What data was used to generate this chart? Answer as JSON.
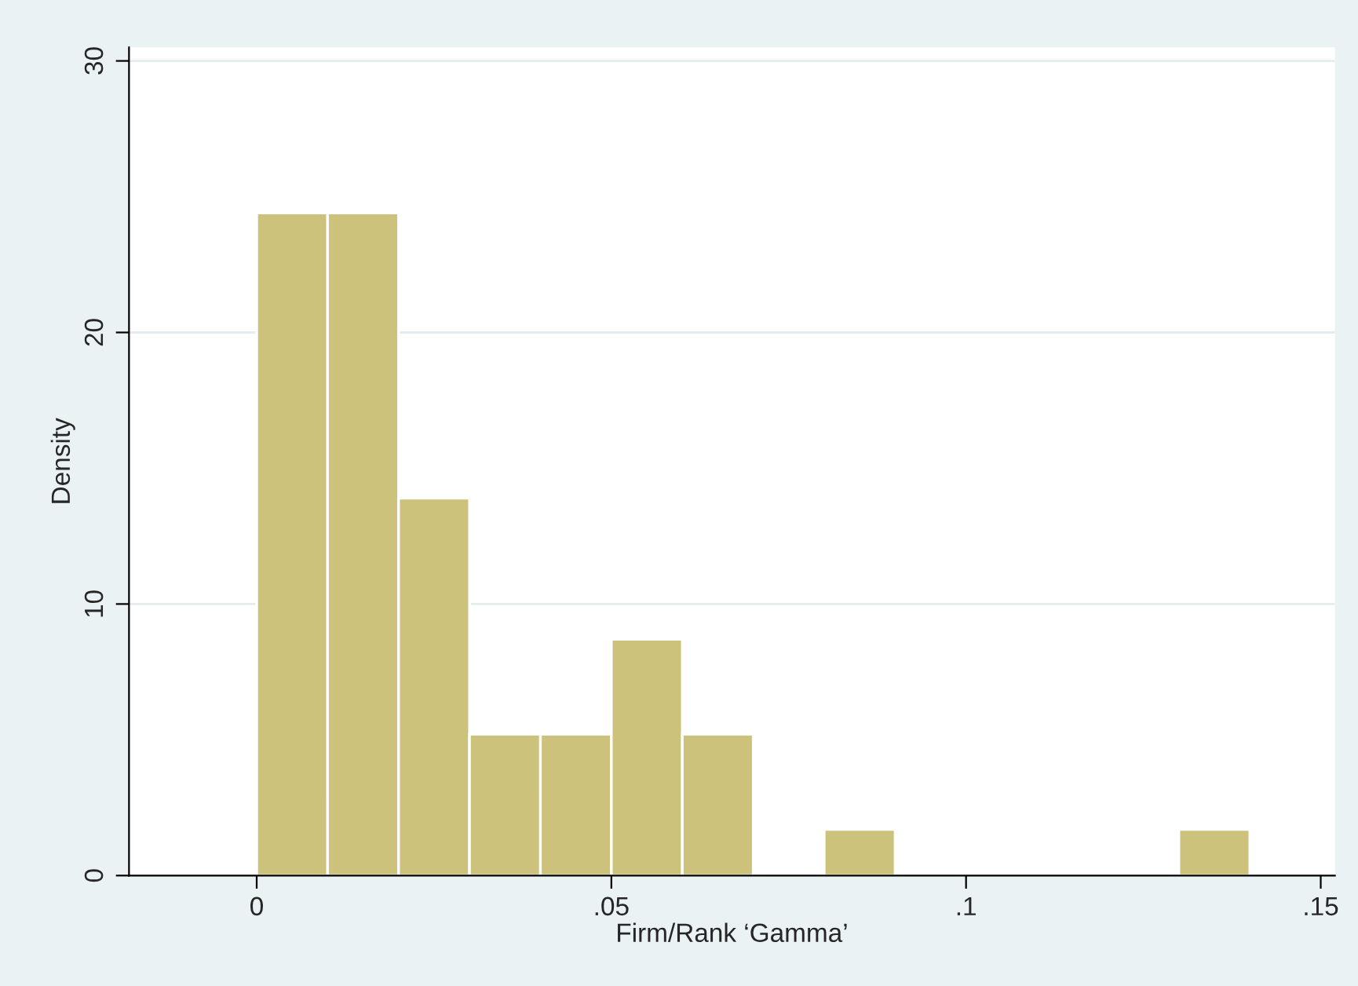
{
  "chart_data": {
    "type": "histogram",
    "xlabel": "Firm/Rank ‘Gamma’",
    "ylabel": "Density",
    "bins": [
      0,
      0.01,
      0.02,
      0.03,
      0.04,
      0.05,
      0.06,
      0.07,
      0.08,
      0.09,
      0.1,
      0.11,
      0.12,
      0.13,
      0.14
    ],
    "values": [
      24.4,
      24.4,
      13.9,
      5.2,
      5.2,
      8.7,
      5.2,
      0,
      1.7,
      0,
      0,
      0,
      0,
      1.7
    ],
    "color": "#cdc27c",
    "xlim": [
      -0.018,
      0.152
    ],
    "xticks": [
      0,
      {
        "value": 0.05,
        "label": ".05"
      },
      {
        "value": 0.1,
        "label": ".1"
      },
      {
        "value": 0.15,
        "label": ".15"
      }
    ],
    "ylim": [
      0,
      30.5
    ],
    "yticks": [
      0,
      10,
      20,
      30
    ],
    "grid": "y"
  }
}
